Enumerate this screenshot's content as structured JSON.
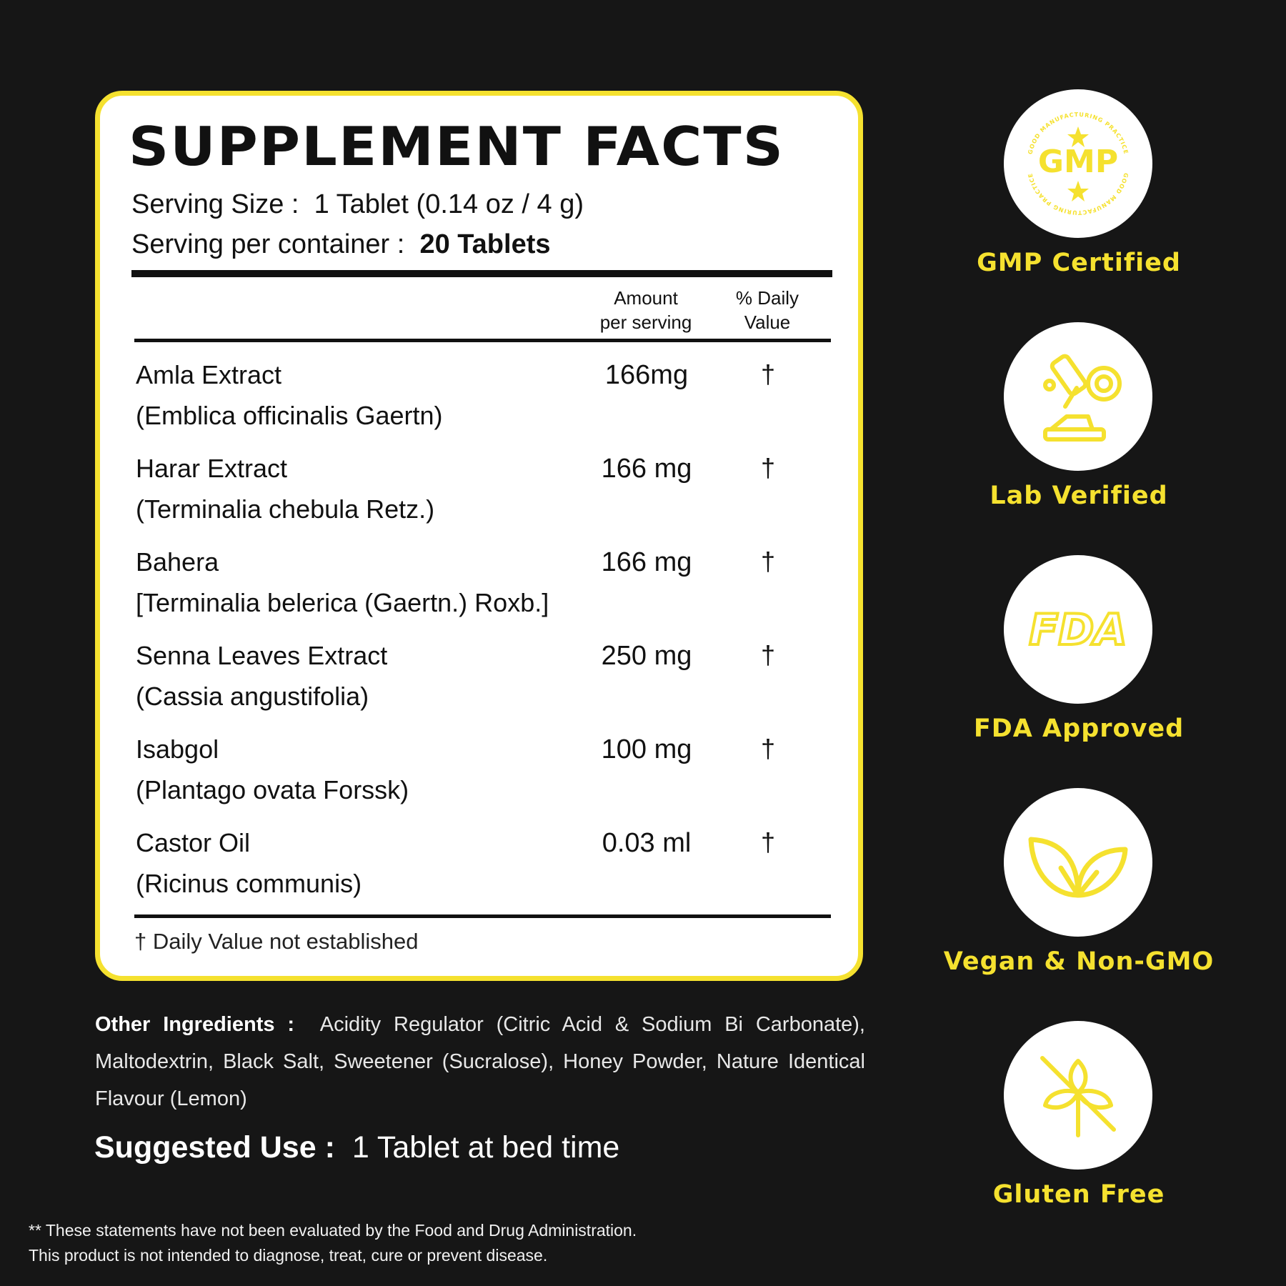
{
  "facts": {
    "title": "SUPPLEMENT FACTS",
    "serving_size_label": "Serving Size :",
    "serving_size_value": "1 Tablet (0.14 oz / 4 g)",
    "servings_label": "Serving per container :",
    "servings_value": "20 Tablets",
    "col_amount_line1": "Amount",
    "col_amount_line2": "per serving",
    "col_dv_line1": "% Daily",
    "col_dv_line2": "Value",
    "ingredients": [
      {
        "name": "Amla Extract",
        "latin": "(Emblica officinalis Gaertn)",
        "amount": "166mg",
        "dv": "†"
      },
      {
        "name": "Harar Extract",
        "latin": "(Terminalia chebula Retz.)",
        "amount": "166 mg",
        "dv": "†"
      },
      {
        "name": "Bahera",
        "latin": "[Terminalia belerica (Gaertn.) Roxb.]",
        "amount": "166 mg",
        "dv": "†"
      },
      {
        "name": "Senna Leaves Extract",
        "latin": "(Cassia angustifolia)",
        "amount": "250 mg",
        "dv": "†"
      },
      {
        "name": "Isabgol",
        "latin": "(Plantago ovata Forssk)",
        "amount": "100 mg",
        "dv": "†"
      },
      {
        "name": "Castor Oil",
        "latin": "(Ricinus communis)",
        "amount": "0.03 ml",
        "dv": "†"
      }
    ],
    "footnote": "† Daily Value not established"
  },
  "other_ingredients": {
    "label": "Other Ingredients :",
    "text": "Acidity Regulator (Citric Acid & Sodium Bi Carbonate), Maltodextrin, Black Salt, Sweetener (Sucralose), Honey Powder, Nature Identical Flavour (Lemon)"
  },
  "suggested_use": {
    "label": "Suggested Use :",
    "value": "1 Tablet at bed time"
  },
  "disclaimer": {
    "line1": "** These statements have not been evaluated by the Food and Drug Administration.",
    "line2": "This product is not intended to diagnose, treat, cure or prevent disease."
  },
  "badges": [
    {
      "label": "GMP Certified",
      "icon": "gmp-seal-icon",
      "seal_text": "GMP",
      "seal_ring_text": "GOOD MANUFACTURING PRACTICE"
    },
    {
      "label": "Lab Verified",
      "icon": "microscope-icon"
    },
    {
      "label": "FDA Approved",
      "icon": "fda-logo-icon",
      "logo_text": "FDA"
    },
    {
      "label": "Vegan & Non-GMO",
      "icon": "leaves-icon"
    },
    {
      "label": "Gluten Free",
      "icon": "no-wheat-icon"
    }
  ],
  "colors": {
    "background": "#161616",
    "accent": "#f5e12f",
    "panel": "#ffffff",
    "text_dark": "#111111"
  }
}
